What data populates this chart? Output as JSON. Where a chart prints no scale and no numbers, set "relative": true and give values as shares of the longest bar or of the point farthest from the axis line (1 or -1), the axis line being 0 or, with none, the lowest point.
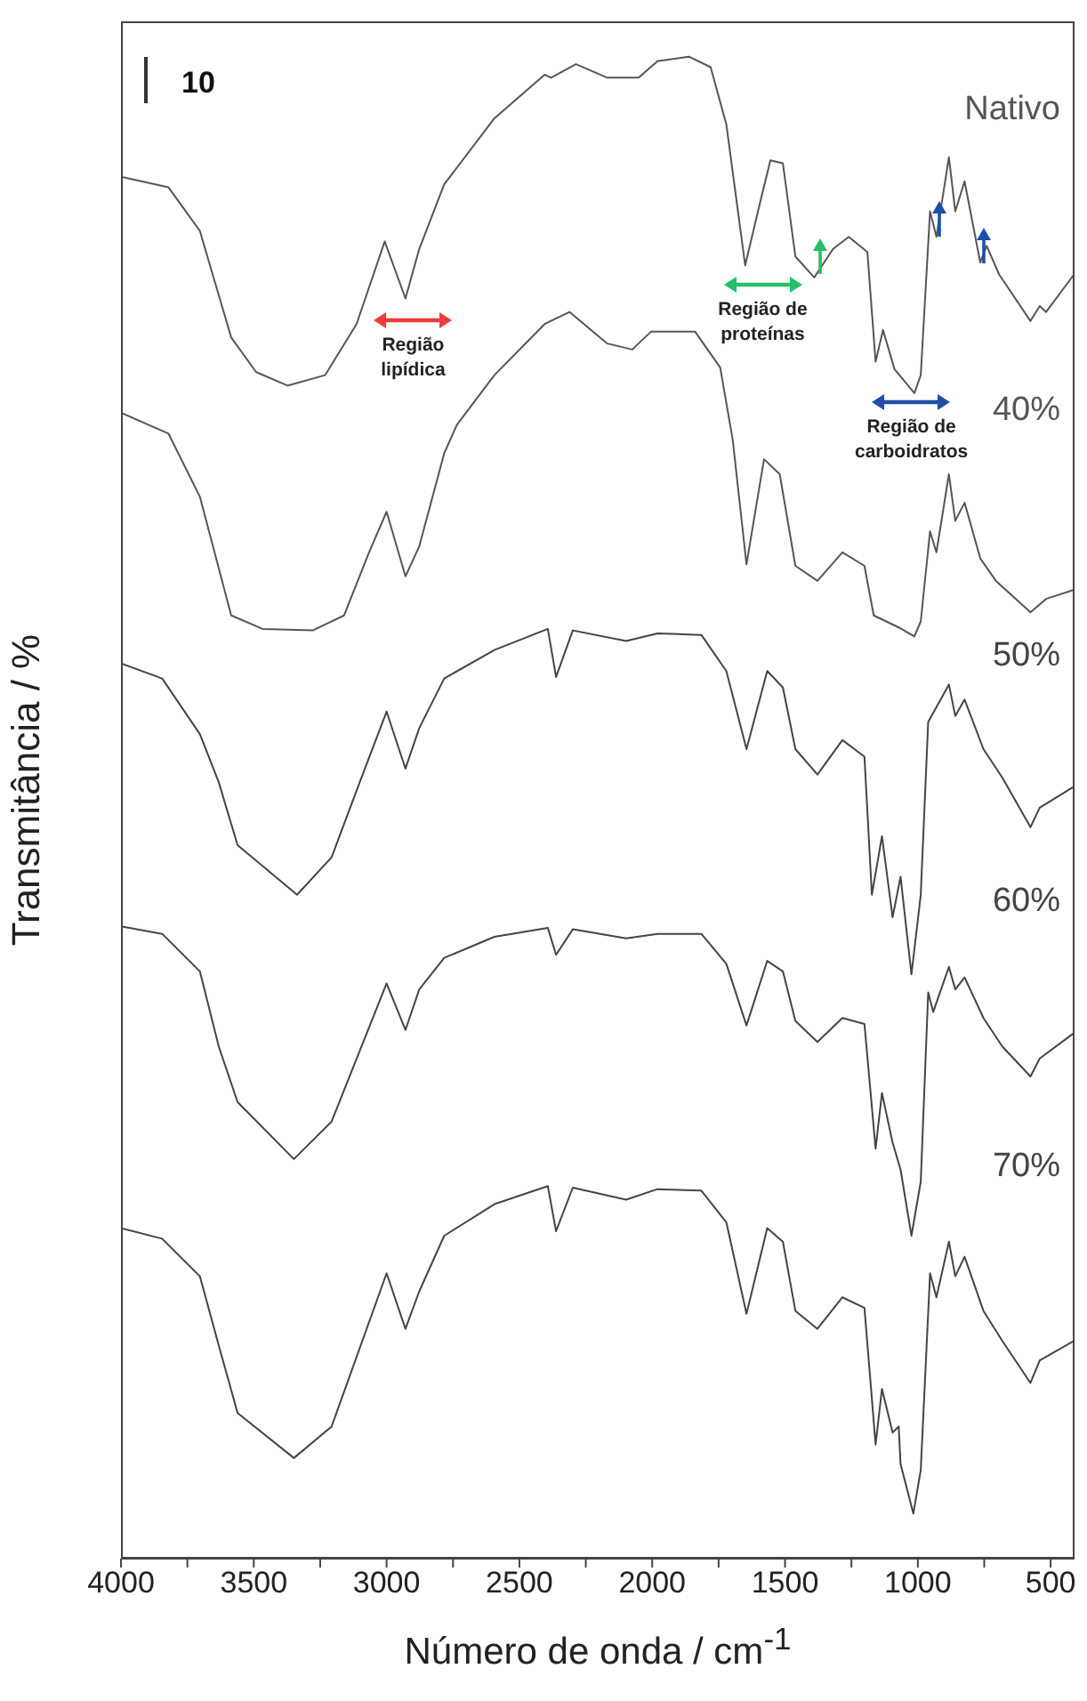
{
  "chart_data": {
    "type": "line",
    "relative": true,
    "xlabel": "Número de onda / cm$^{-1}$",
    "ylabel": "Transmitância / %",
    "xlim": [
      4000,
      410
    ],
    "xticks": [
      4000,
      {
        "value": 3750,
        "label": null
      },
      3500,
      {
        "value": 3250,
        "label": null
      },
      3000,
      {
        "value": 2750,
        "label": null
      },
      2500,
      {
        "value": 2250,
        "label": null
      },
      2000,
      {
        "value": 1750,
        "label": null
      },
      1500,
      {
        "value": 1250,
        "label": null
      },
      1000,
      {
        "value": 750,
        "label": null
      },
      500
    ],
    "annotations": [
      "10",
      "Região lipídica",
      "Região de proteínas",
      "Região de carboidratos"
    ],
    "series": [
      {
        "name": "Nativo",
        "color": "#555555",
        "x": [
          4000,
          3821,
          3703,
          3585,
          3491,
          3373,
          3231,
          3113,
          3007,
          2929,
          2877,
          2783,
          2594,
          2405,
          2381,
          2287,
          2169,
          2051,
          1980,
          1862,
          1780,
          1721,
          1650,
          1591,
          1555,
          1508,
          1461,
          1390,
          1319,
          1260,
          1190,
          1159,
          1131,
          1088,
          1013,
          989,
          954,
          930,
          883,
          859,
          824,
          765,
          741,
          694,
          576,
          541,
          517,
          412
        ],
        "values": [
          0.92,
          0.913,
          0.884,
          0.813,
          0.79,
          0.781,
          0.788,
          0.822,
          0.877,
          0.839,
          0.872,
          0.915,
          0.959,
          0.988,
          0.986,
          0.995,
          0.986,
          0.986,
          0.997,
          1.0,
          0.993,
          0.955,
          0.861,
          0.905,
          0.931,
          0.929,
          0.867,
          0.853,
          0.872,
          0.88,
          0.87,
          0.797,
          0.818,
          0.792,
          0.776,
          0.788,
          0.897,
          0.88,
          0.933,
          0.897,
          0.917,
          0.863,
          0.874,
          0.855,
          0.824,
          0.834,
          0.83,
          0.855
        ]
      },
      {
        "name": "40%",
        "color": "#555555",
        "x": [
          4000,
          3821,
          3703,
          3585,
          3467,
          3278,
          3160,
          3066,
          3000,
          2929,
          2877,
          2783,
          2735,
          2594,
          2405,
          2311,
          2169,
          2075,
          2004,
          1839,
          1744,
          1697,
          1645,
          1579,
          1520,
          1461,
          1378,
          1284,
          1201,
          1166,
          1072,
          1013,
          989,
          954,
          930,
          883,
          859,
          824,
          765,
          706,
          576,
          517,
          412
        ],
        "values": [
          0.763,
          0.749,
          0.707,
          0.628,
          0.619,
          0.618,
          0.628,
          0.67,
          0.697,
          0.654,
          0.674,
          0.736,
          0.755,
          0.788,
          0.822,
          0.83,
          0.809,
          0.805,
          0.817,
          0.817,
          0.793,
          0.745,
          0.662,
          0.732,
          0.722,
          0.661,
          0.651,
          0.67,
          0.661,
          0.628,
          0.62,
          0.614,
          0.624,
          0.684,
          0.67,
          0.722,
          0.691,
          0.703,
          0.666,
          0.651,
          0.63,
          0.639,
          0.645
        ]
      },
      {
        "name": "50%",
        "color": "#444444",
        "x": [
          4000,
          3845,
          3703,
          3632,
          3561,
          3337,
          3207,
          3101,
          3000,
          2929,
          2877,
          2783,
          2594,
          2393,
          2362,
          2299,
          2098,
          1980,
          1815,
          1721,
          1645,
          1567,
          1508,
          1461,
          1378,
          1284,
          1201,
          1173,
          1135,
          1095,
          1065,
          1024,
          989,
          961,
          883,
          859,
          824,
          753,
          682,
          576,
          541,
          412
        ],
        "values": [
          0.596,
          0.586,
          0.549,
          0.517,
          0.475,
          0.442,
          0.467,
          0.517,
          0.564,
          0.526,
          0.553,
          0.586,
          0.605,
          0.619,
          0.587,
          0.618,
          0.611,
          0.616,
          0.615,
          0.591,
          0.539,
          0.591,
          0.58,
          0.539,
          0.522,
          0.545,
          0.534,
          0.442,
          0.481,
          0.427,
          0.454,
          0.389,
          0.442,
          0.557,
          0.582,
          0.561,
          0.572,
          0.539,
          0.52,
          0.487,
          0.5,
          0.514
        ]
      },
      {
        "name": "60%",
        "color": "#444444",
        "x": [
          4000,
          3845,
          3703,
          3632,
          3561,
          3349,
          3207,
          3000,
          2929,
          2877,
          2783,
          2594,
          2393,
          2362,
          2299,
          2098,
          1980,
          1815,
          1721,
          1645,
          1567,
          1508,
          1461,
          1378,
          1284,
          1201,
          1159,
          1135,
          1095,
          1065,
          1024,
          989,
          961,
          942,
          883,
          859,
          824,
          753,
          682,
          576,
          541,
          412
        ],
        "values": [
          0.421,
          0.416,
          0.391,
          0.341,
          0.304,
          0.266,
          0.291,
          0.383,
          0.352,
          0.379,
          0.4,
          0.414,
          0.42,
          0.402,
          0.419,
          0.413,
          0.416,
          0.416,
          0.396,
          0.355,
          0.398,
          0.391,
          0.358,
          0.344,
          0.36,
          0.356,
          0.273,
          0.31,
          0.277,
          0.259,
          0.215,
          0.251,
          0.377,
          0.364,
          0.394,
          0.379,
          0.387,
          0.36,
          0.341,
          0.321,
          0.333,
          0.35
        ]
      },
      {
        "name": "70%",
        "color": "#444444",
        "x": [
          4000,
          3845,
          3703,
          3632,
          3561,
          3349,
          3207,
          3000,
          2929,
          2877,
          2783,
          2594,
          2393,
          2362,
          2299,
          2098,
          1980,
          1815,
          1721,
          1645,
          1567,
          1508,
          1461,
          1378,
          1284,
          1201,
          1159,
          1135,
          1095,
          1072,
          1065,
          1017,
          989,
          954,
          930,
          883,
          859,
          824,
          753,
          682,
          576,
          541,
          412
        ],
        "values": [
          0.22,
          0.213,
          0.188,
          0.142,
          0.097,
          0.067,
          0.088,
          0.19,
          0.153,
          0.178,
          0.215,
          0.236,
          0.248,
          0.218,
          0.247,
          0.239,
          0.246,
          0.245,
          0.224,
          0.163,
          0.22,
          0.211,
          0.165,
          0.153,
          0.174,
          0.167,
          0.076,
          0.113,
          0.084,
          0.088,
          0.063,
          0.03,
          0.059,
          0.19,
          0.174,
          0.211,
          0.188,
          0.201,
          0.165,
          0.145,
          0.117,
          0.132,
          0.145
        ]
      }
    ]
  }
}
